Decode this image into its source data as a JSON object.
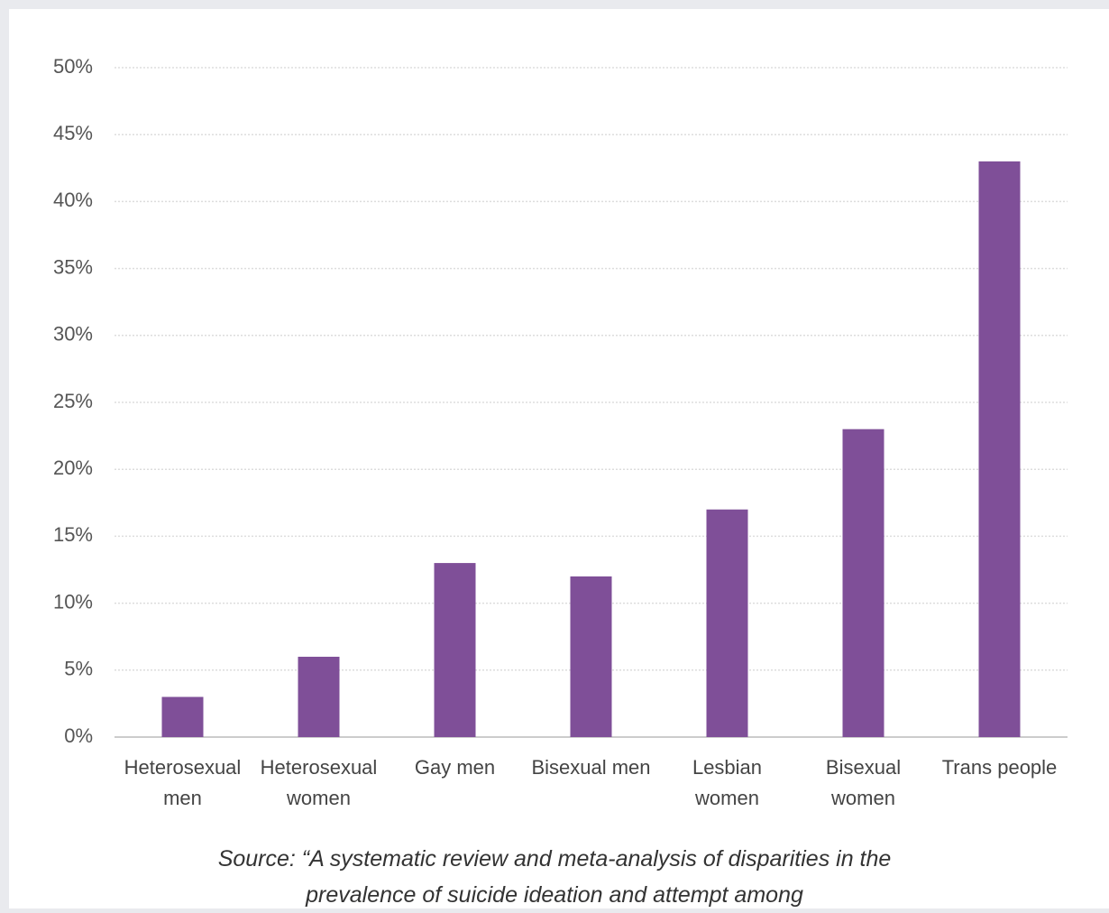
{
  "chart_data": {
    "type": "bar",
    "categories": [
      "Heterosexual men",
      "Heterosexual women",
      "Gay men",
      "Bisexual men",
      "Lesbian women",
      "Bisexual women",
      "Trans people"
    ],
    "values": [
      3,
      6,
      13,
      12,
      17,
      23,
      43
    ],
    "color": "#7f4f98",
    "ylim": [
      0,
      50
    ],
    "yticks": [
      {
        "value": 0,
        "label": "0%"
      },
      {
        "value": 5,
        "label": "5%"
      },
      {
        "value": 10,
        "label": "10%"
      },
      {
        "value": 15,
        "label": "15%"
      },
      {
        "value": 20,
        "label": "20%"
      },
      {
        "value": 25,
        "label": "25%"
      },
      {
        "value": 30,
        "label": "30%"
      },
      {
        "value": 35,
        "label": "35%"
      },
      {
        "value": 40,
        "label": "40%"
      },
      {
        "value": 45,
        "label": "45%"
      },
      {
        "value": 50,
        "label": "50%"
      }
    ],
    "grid": true,
    "source": "Source: “A systematic review and meta-analysis of disparities in the prevalence of suicide ideation and attempt among"
  }
}
